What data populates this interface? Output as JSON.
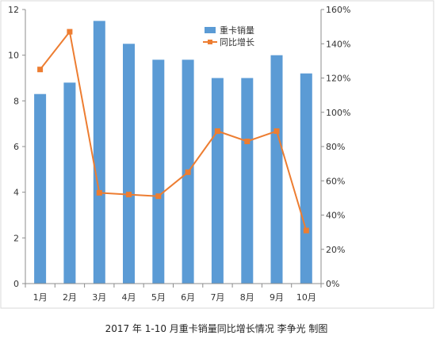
{
  "chart_data": {
    "type": "bar",
    "categories": [
      "1月",
      "2月",
      "3月",
      "4月",
      "5月",
      "6月",
      "7月",
      "8月",
      "9月",
      "10月"
    ],
    "series": [
      {
        "name": "重卡销量",
        "type": "bar",
        "axis": "left",
        "color": "#5b9bd5",
        "values": [
          8.3,
          8.8,
          11.5,
          10.5,
          9.8,
          9.8,
          9.0,
          9.0,
          10.0,
          9.2
        ]
      },
      {
        "name": "同比增长",
        "type": "line",
        "axis": "right",
        "color": "#ed7d31",
        "values": [
          1.25,
          1.47,
          0.53,
          0.52,
          0.51,
          0.65,
          0.89,
          0.83,
          0.89,
          0.31
        ]
      }
    ],
    "y_left": {
      "min": 0,
      "max": 12,
      "ticks": [
        "0",
        "2",
        "4",
        "6",
        "8",
        "10",
        "12"
      ]
    },
    "y_right": {
      "min": 0,
      "max": 1.6,
      "ticks": [
        "0%",
        "20%",
        "40%",
        "60%",
        "80%",
        "100%",
        "120%",
        "140%",
        "160%"
      ]
    },
    "legend_position": "top-right",
    "grid": false,
    "caption": "2017 年 1-10 月重卡销量同比增长情况 李争光 制图"
  }
}
